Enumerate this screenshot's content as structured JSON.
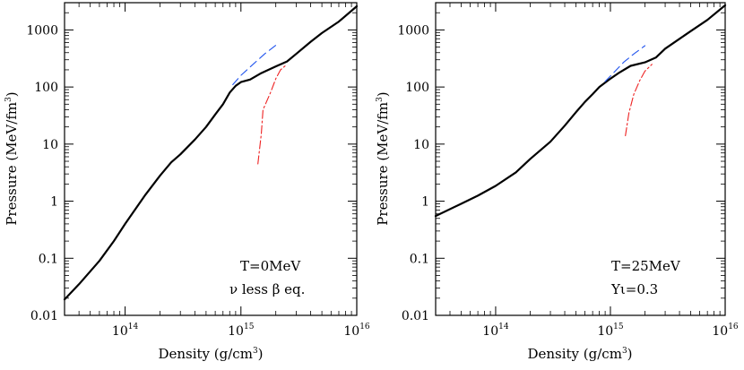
{
  "chart_data": [
    {
      "type": "line",
      "xscale": "log",
      "yscale": "log",
      "xlim": [
        30000000000000.0,
        1e+16
      ],
      "ylim": [
        0.01,
        3000
      ],
      "xlabel_text": "Density (g/cm",
      "xlabel_sup": "3",
      "xlabel_close": ")",
      "ylabel_text": "Pressure (MeV/fm",
      "ylabel_sup": "3",
      "ylabel_close": ")",
      "x_ticks": [
        {
          "value": 100000000000000.0,
          "base": "10",
          "exp": "14"
        },
        {
          "value": 1000000000000000.0,
          "base": "10",
          "exp": "15"
        },
        {
          "value": 1e+16,
          "base": "10",
          "exp": "16"
        }
      ],
      "y_ticks": [
        {
          "value": 0.01,
          "label": "0.01"
        },
        {
          "value": 0.1,
          "label": "0.1"
        },
        {
          "value": 1,
          "label": "1"
        },
        {
          "value": 10,
          "label": "10"
        },
        {
          "value": 100,
          "label": "100"
        },
        {
          "value": 1000,
          "label": "1000"
        }
      ],
      "annotation_line1": "T=0MeV",
      "annotation_line2": "ν less β eq.",
      "series": [
        {
          "name": "full",
          "style": "solid",
          "color": "#000000",
          "points": [
            [
              30000000000000.0,
              0.019
            ],
            [
              40000000000000.0,
              0.035
            ],
            [
              60000000000000.0,
              0.09
            ],
            [
              80000000000000.0,
              0.2
            ],
            [
              100000000000000.0,
              0.4
            ],
            [
              150000000000000.0,
              1.3
            ],
            [
              200000000000000.0,
              2.8
            ],
            [
              250000000000000.0,
              4.8
            ],
            [
              300000000000000.0,
              6.6
            ],
            [
              400000000000000.0,
              12
            ],
            [
              500000000000000.0,
              20
            ],
            [
              600000000000000.0,
              33
            ],
            [
              700000000000000.0,
              50
            ],
            [
              800000000000000.0,
              80
            ],
            [
              900000000000000.0,
              105
            ],
            [
              1000000000000000.0,
              122
            ],
            [
              1200000000000000.0,
              135
            ],
            [
              1500000000000000.0,
              175
            ],
            [
              2000000000000000.0,
              230
            ],
            [
              2500000000000000.0,
              280
            ],
            [
              3000000000000000.0,
              380
            ],
            [
              4000000000000000.0,
              620
            ],
            [
              5000000000000000.0,
              880
            ],
            [
              7000000000000000.0,
              1400
            ],
            [
              1e+16,
              2600
            ]
          ]
        },
        {
          "name": "blue-dashed",
          "style": "dashed",
          "color": "#2255ee",
          "points": [
            [
              850000000000000.0,
              110
            ],
            [
              1000000000000000.0,
              160
            ],
            [
              1300000000000000.0,
              260
            ],
            [
              1600000000000000.0,
              380
            ],
            [
              2000000000000000.0,
              540
            ]
          ]
        },
        {
          "name": "red-dashdot",
          "style": "dashdot",
          "color": "#ee2222",
          "points": [
            [
              1400000000000000.0,
              4.5
            ],
            [
              1500000000000000.0,
              15
            ],
            [
              1550000000000000.0,
              40
            ],
            [
              1800000000000000.0,
              80
            ],
            [
              2000000000000000.0,
              140
            ],
            [
              2200000000000000.0,
              200
            ],
            [
              2500000000000000.0,
              250
            ]
          ]
        }
      ]
    },
    {
      "type": "line",
      "xscale": "log",
      "yscale": "log",
      "xlim": [
        30000000000000.0,
        1e+16
      ],
      "ylim": [
        0.01,
        3000
      ],
      "xlabel_text": "Density (g/cm",
      "xlabel_sup": "3",
      "xlabel_close": ")",
      "ylabel_text": "Pressure (MeV/fm",
      "ylabel_sup": "3",
      "ylabel_close": ")",
      "x_ticks": [
        {
          "value": 100000000000000.0,
          "base": "10",
          "exp": "14"
        },
        {
          "value": 1000000000000000.0,
          "base": "10",
          "exp": "15"
        },
        {
          "value": 1e+16,
          "base": "10",
          "exp": "16"
        }
      ],
      "y_ticks": [
        {
          "value": 0.01,
          "label": "0.01"
        },
        {
          "value": 0.1,
          "label": "0.1"
        },
        {
          "value": 1,
          "label": "1"
        },
        {
          "value": 10,
          "label": "10"
        },
        {
          "value": 100,
          "label": "100"
        },
        {
          "value": 1000,
          "label": "1000"
        }
      ],
      "annotation_line1": "T=25MeV",
      "annotation_line2": "Yι=0.3",
      "series": [
        {
          "name": "full",
          "style": "solid",
          "color": "#000000",
          "points": [
            [
              30000000000000.0,
              0.55
            ],
            [
              50000000000000.0,
              0.9
            ],
            [
              70000000000000.0,
              1.25
            ],
            [
              100000000000000.0,
              1.85
            ],
            [
              150000000000000.0,
              3.2
            ],
            [
              200000000000000.0,
              5.5
            ],
            [
              300000000000000.0,
              11
            ],
            [
              400000000000000.0,
              21
            ],
            [
              500000000000000.0,
              36
            ],
            [
              600000000000000.0,
              55
            ],
            [
              700000000000000.0,
              75
            ],
            [
              800000000000000.0,
              100
            ],
            [
              1000000000000000.0,
              140
            ],
            [
              1200000000000000.0,
              180
            ],
            [
              1500000000000000.0,
              235
            ],
            [
              2000000000000000.0,
              270
            ],
            [
              2500000000000000.0,
              330
            ],
            [
              3000000000000000.0,
              470
            ],
            [
              4000000000000000.0,
              700
            ],
            [
              5000000000000000.0,
              950
            ],
            [
              7000000000000000.0,
              1500
            ],
            [
              1e+16,
              2700
            ]
          ]
        },
        {
          "name": "blue-dashed",
          "style": "dashed",
          "color": "#2255ee",
          "points": [
            [
              900000000000000.0,
              125
            ],
            [
              1100000000000000.0,
              190
            ],
            [
              1300000000000000.0,
              270
            ],
            [
              1600000000000000.0,
              380
            ],
            [
              2000000000000000.0,
              530
            ]
          ]
        },
        {
          "name": "red-dashdot",
          "style": "dashdot",
          "color": "#ee2222",
          "points": [
            [
              1350000000000000.0,
              14
            ],
            [
              1450000000000000.0,
              35
            ],
            [
              1600000000000000.0,
              75
            ],
            [
              1800000000000000.0,
              130
            ],
            [
              2000000000000000.0,
              190
            ],
            [
              2300000000000000.0,
              250
            ]
          ]
        }
      ]
    }
  ]
}
